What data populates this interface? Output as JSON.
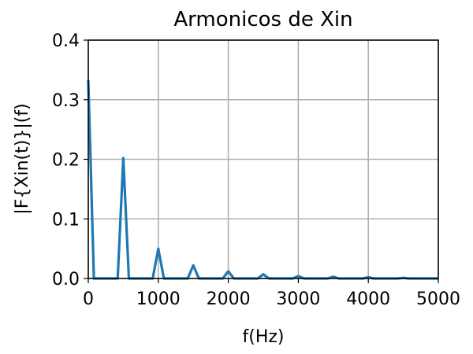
{
  "chart_data": {
    "type": "line",
    "title": "Armonicos de Xin",
    "xlabel": "f(Hz)",
    "ylabel": "|F{Xin(t)}|(f)",
    "xlim": [
      0,
      5000
    ],
    "ylim": [
      0,
      0.4
    ],
    "xticks": [
      0,
      1000,
      2000,
      3000,
      4000,
      5000
    ],
    "yticks": [
      0.0,
      0.1,
      0.2,
      0.3,
      0.4
    ],
    "xtick_labels": [
      "0",
      "1000",
      "2000",
      "3000",
      "4000",
      "5000"
    ],
    "ytick_labels": [
      "0.0",
      "0.1",
      "0.2",
      "0.3",
      "0.4"
    ],
    "grid": true,
    "series": [
      {
        "color": "#1f77b4",
        "x": [
          0,
          80,
          420,
          500,
          580,
          920,
          1000,
          1080,
          1420,
          1500,
          1580,
          1920,
          2000,
          2080,
          2420,
          2500,
          2580,
          2920,
          3000,
          3080,
          3420,
          3500,
          3580,
          3920,
          4000,
          4080,
          4420,
          4500,
          4580,
          5000
        ],
        "y": [
          0.333,
          0,
          0,
          0.202,
          0,
          0,
          0.05,
          0,
          0,
          0.022,
          0,
          0,
          0.012,
          0,
          0,
          0.007,
          0,
          0,
          0.004,
          0,
          0,
          0.003,
          0,
          0,
          0.002,
          0,
          0,
          0.001,
          0,
          0
        ]
      }
    ]
  }
}
